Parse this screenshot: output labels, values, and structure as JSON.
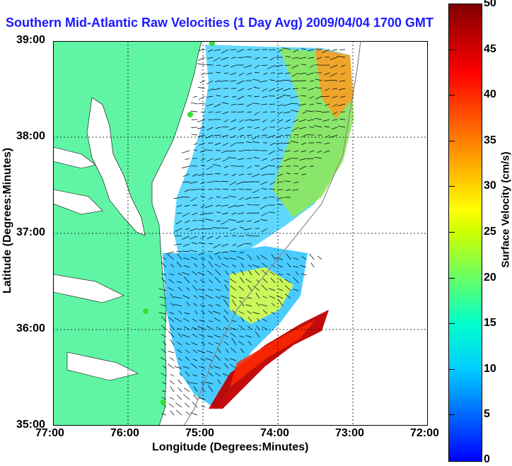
{
  "title": "Southern Mid-Atlantic Raw Velocities (1 Day Avg) 2009/04/04 1700 GMT",
  "xlabel": "Longitude (Degrees:Minutes)",
  "ylabel": "Latitude (Degrees:Minutes)",
  "colorbar_label": "Surface Velocity (cm/s)",
  "x_ticks": [
    "77:00",
    "76:00",
    "75:00",
    "74:00",
    "73:00",
    "72:00"
  ],
  "y_ticks": [
    "39:00",
    "38:00",
    "37:00",
    "36:00",
    "35:00"
  ],
  "colorbar_ticks": [
    "50",
    "45",
    "40",
    "35",
    "30",
    "25",
    "20",
    "15",
    "10",
    "5",
    "0"
  ],
  "colors": {
    "land": "#5ff5a5",
    "title": "#1a1aff",
    "grid": "#000000"
  },
  "map": {
    "lon_range": [
      -77,
      -72
    ],
    "lat_range": [
      35,
      39
    ],
    "colorbar_range_cms": [
      0,
      50
    ],
    "grid": true
  }
}
